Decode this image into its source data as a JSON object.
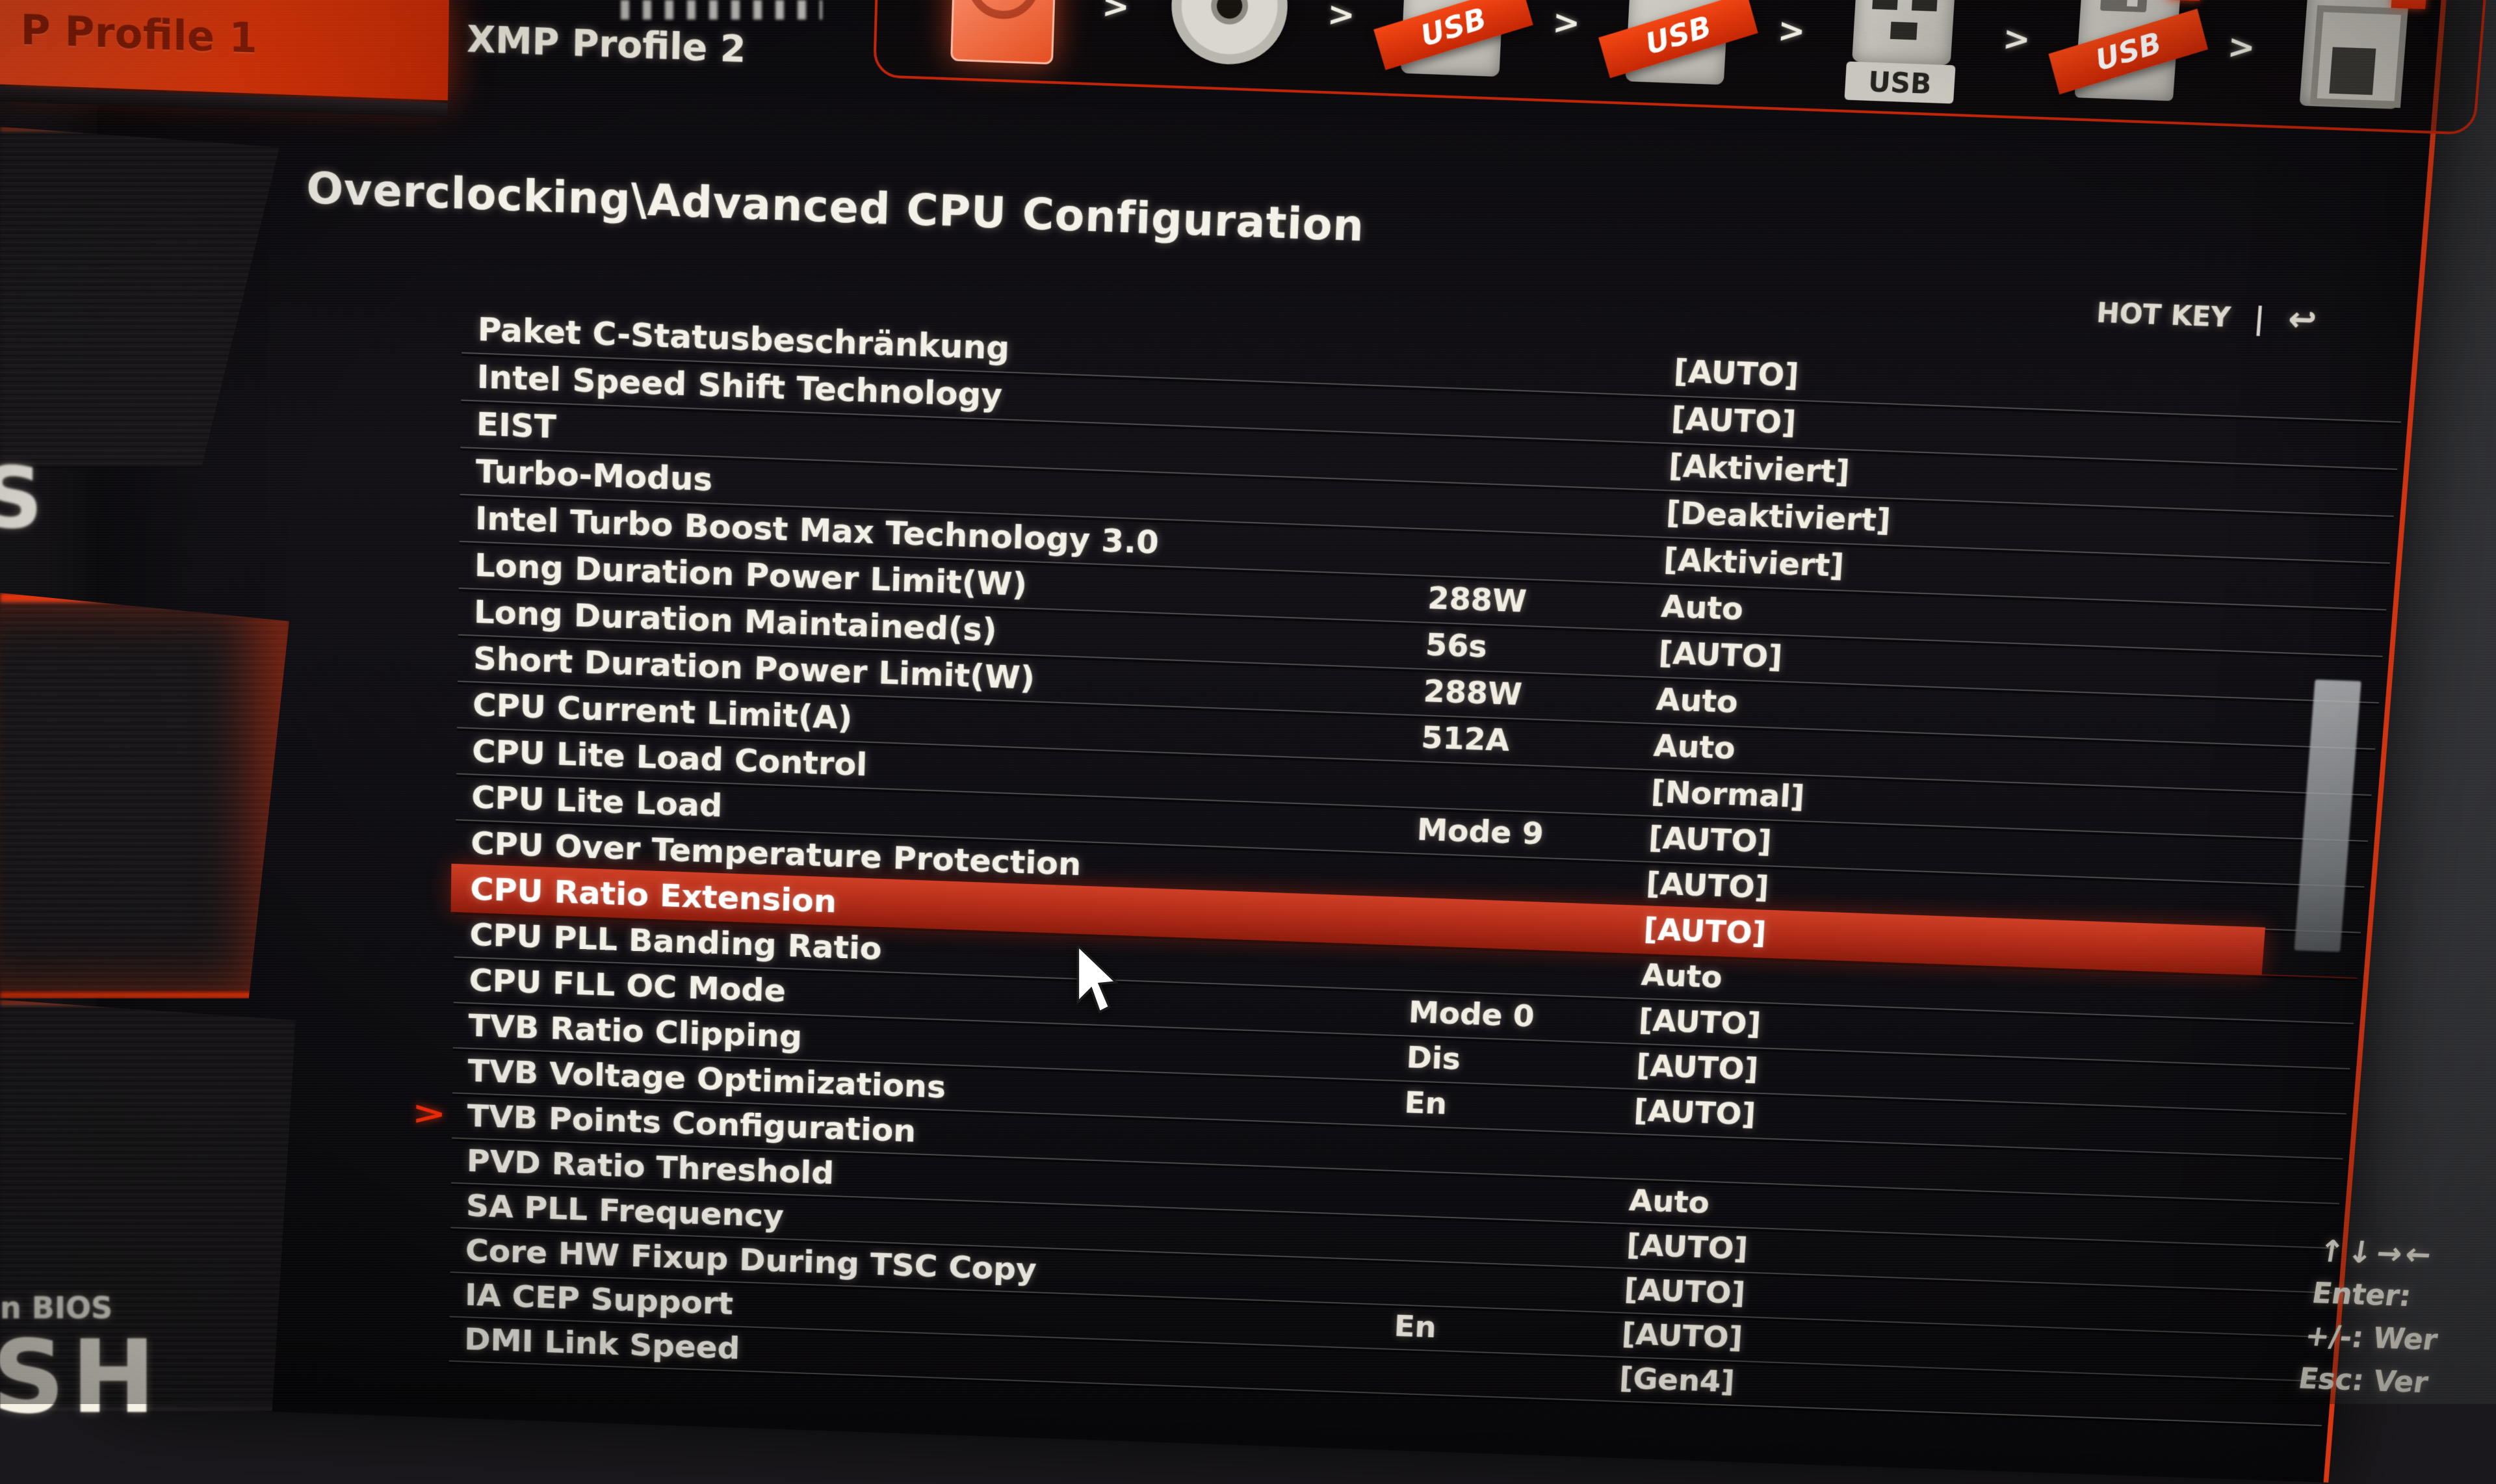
{
  "colors": {
    "accent": "#e8380d",
    "highlight_row": "#b02a1c",
    "panel_bg": "#0d0c0f",
    "text": "#f1eee6",
    "uefi_badge_bg": "#e03a10"
  },
  "header": {
    "breadcrumb": "Overclocking\\Advanced CPU Configuration",
    "hotkey_label": "HOT KEY",
    "hotkey_divider": "|",
    "back_icon": "↩"
  },
  "tabs": [
    {
      "label": "P Profile 1",
      "active": true
    },
    {
      "label": "XMP Profile 2",
      "active": false
    }
  ],
  "boot_bar": {
    "separator": ">",
    "uefi_badge": "U",
    "devices": [
      {
        "name": "hard-drive",
        "highlighted": true
      },
      {
        "name": "cd-dvd",
        "highlighted": false
      },
      {
        "name": "usb-flash-ribbon",
        "ribbon": "USB",
        "highlighted": false
      },
      {
        "name": "usb-flash-ribbon-2",
        "ribbon": "USB",
        "highlighted": false
      },
      {
        "name": "usb-connector",
        "label": "USB",
        "highlighted": false
      },
      {
        "name": "floppy-usb",
        "ribbon": "USB",
        "highlighted": false
      },
      {
        "name": "memory-card",
        "highlighted": false
      }
    ]
  },
  "settings": {
    "rows": [
      {
        "label": "Paket C-Statusbeschränkung",
        "mid": "",
        "value": "[AUTO]",
        "highlighted": false,
        "has_submenu": false
      },
      {
        "label": "Intel Speed Shift Technology",
        "mid": "",
        "value": "[AUTO]",
        "highlighted": false,
        "has_submenu": false
      },
      {
        "label": "EIST",
        "mid": "",
        "value": "[Aktiviert]",
        "highlighted": false,
        "has_submenu": false
      },
      {
        "label": "Turbo-Modus",
        "mid": "",
        "value": "[Deaktiviert]",
        "highlighted": false,
        "has_submenu": false
      },
      {
        "label": "Intel Turbo Boost Max Technology 3.0",
        "mid": "",
        "value": "[Aktiviert]",
        "highlighted": false,
        "has_submenu": false
      },
      {
        "label": "Long Duration Power Limit(W)",
        "mid": "288W",
        "value": "Auto",
        "highlighted": false,
        "has_submenu": false
      },
      {
        "label": "Long Duration Maintained(s)",
        "mid": "56s",
        "value": "[AUTO]",
        "highlighted": false,
        "has_submenu": false
      },
      {
        "label": "Short Duration Power Limit(W)",
        "mid": "288W",
        "value": "Auto",
        "highlighted": false,
        "has_submenu": false
      },
      {
        "label": "CPU Current Limit(A)",
        "mid": "512A",
        "value": "Auto",
        "highlighted": false,
        "has_submenu": false
      },
      {
        "label": "CPU Lite Load Control",
        "mid": "",
        "value": "[Normal]",
        "highlighted": false,
        "has_submenu": false
      },
      {
        "label": "CPU Lite Load",
        "mid": "Mode 9",
        "value": "[AUTO]",
        "highlighted": false,
        "has_submenu": false
      },
      {
        "label": "CPU Over Temperature Protection",
        "mid": "",
        "value": "[AUTO]",
        "highlighted": false,
        "has_submenu": false
      },
      {
        "label": "CPU Ratio Extension",
        "mid": "",
        "value": "[AUTO]",
        "highlighted": true,
        "has_submenu": false
      },
      {
        "label": "CPU PLL Banding Ratio",
        "mid": "",
        "value": "Auto",
        "highlighted": false,
        "has_submenu": false
      },
      {
        "label": "CPU FLL OC Mode",
        "mid": "Mode 0",
        "value": "[AUTO]",
        "highlighted": false,
        "has_submenu": false
      },
      {
        "label": "TVB Ratio Clipping",
        "mid": "Dis",
        "value": "[AUTO]",
        "highlighted": false,
        "has_submenu": false
      },
      {
        "label": "TVB Voltage Optimizations",
        "mid": "En",
        "value": "[AUTO]",
        "highlighted": false,
        "has_submenu": false
      },
      {
        "label": "TVB Points Configuration",
        "mid": "",
        "value": "",
        "highlighted": false,
        "has_submenu": true
      },
      {
        "label": "PVD Ratio Threshold",
        "mid": "",
        "value": "Auto",
        "highlighted": false,
        "has_submenu": false
      },
      {
        "label": "SA PLL Frequency",
        "mid": "",
        "value": "[AUTO]",
        "highlighted": false,
        "has_submenu": false
      },
      {
        "label": "Core HW Fixup During TSC Copy",
        "mid": "",
        "value": "[AUTO]",
        "highlighted": false,
        "has_submenu": false
      },
      {
        "label": "IA CEP Support",
        "mid": "En",
        "value": "[AUTO]",
        "highlighted": false,
        "has_submenu": false
      },
      {
        "label": "DMI Link Speed",
        "mid": "",
        "value": "[Gen4]",
        "highlighted": false,
        "has_submenu": false
      }
    ]
  },
  "help": {
    "lines": [
      "↑↓→←",
      "Enter:",
      "+/-: Wer",
      "Esc: Ver"
    ]
  },
  "left_strip": {
    "texts": {
      "s": "S",
      "bios": "n BIOS",
      "sh": "SH"
    }
  }
}
